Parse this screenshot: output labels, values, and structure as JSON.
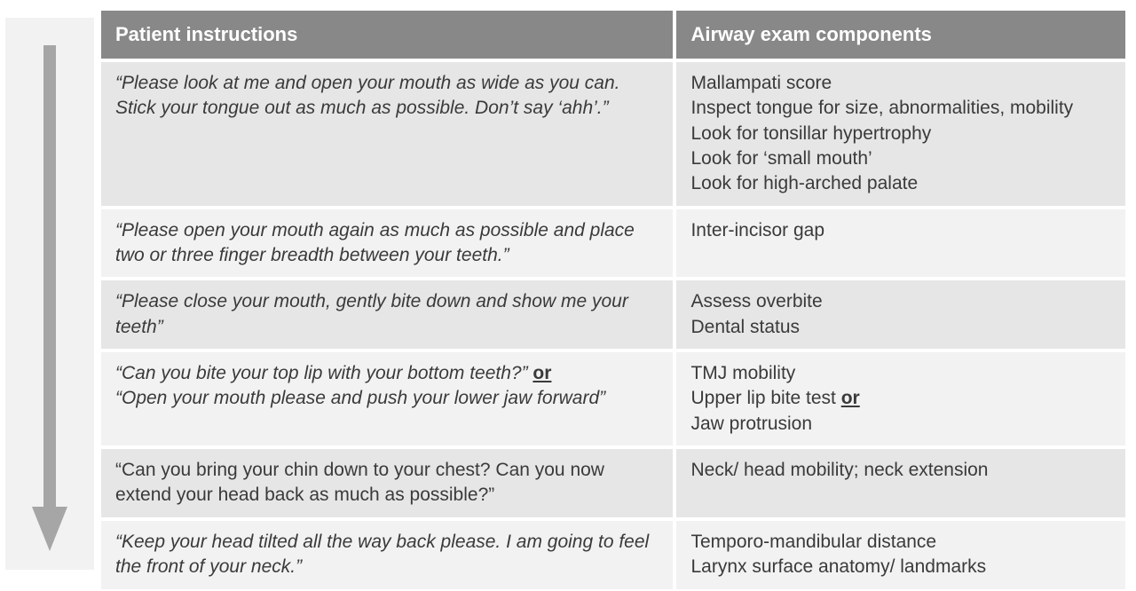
{
  "table": {
    "header": {
      "col1": "Patient instructions",
      "col2": "Airway  exam components"
    },
    "rows": [
      {
        "instruction_italic": true,
        "instruction": "“Please look at me and open your mouth as wide as you can. Stick your tongue out as much as possible. Don’t say ‘ahh’.”",
        "components": "Mallampati score\nInspect tongue for size, abnormalities, mobility\nLook for tonsillar hypertrophy\nLook for ‘small mouth’\nLook for high-arched palate",
        "shade": "a"
      },
      {
        "instruction_italic": true,
        "instruction": "“Please open your mouth again as much as possible and place two or three finger breadth between your teeth.”",
        "components": "Inter-incisor gap",
        "shade": "b"
      },
      {
        "instruction_italic": true,
        "instruction": "“Please close your mouth, gently bite down and show me your teeth”",
        "components": "Assess overbite\nDental status",
        "shade": "a"
      },
      {
        "instruction_italic": true,
        "instruction_html": "<span class=\"ital\">“Can you bite your top lip with your bottom teeth?” </span><span class=\"underline\">or</span><br><span class=\"ital\">“Open your mouth please and push your lower jaw forward”</span>",
        "components_html": "TMJ mobility<br>Upper lip bite test <span class=\"underline2\">or</span><br>Jaw protrusion",
        "shade": "b"
      },
      {
        "instruction_italic": false,
        "instruction": "“Can you bring your chin down to your chest? Can you now extend your head back as much as possible?”",
        "components": "Neck/ head mobility; neck extension",
        "shade": "a"
      },
      {
        "instruction_italic": true,
        "instruction": "“Keep your head tilted all the way back please. I am going to feel the front of your neck.”",
        "components": "Temporo-mandibular distance\nLarynx surface anatomy/ landmarks",
        "shade": "b"
      }
    ]
  },
  "style": {
    "header_bg": "#888888",
    "header_fg": "#ffffff",
    "shade_a": "#e6e6e6",
    "shade_b": "#f2f2f2",
    "arrow_color": "#a6a6a6",
    "border_color": "#ffffff",
    "text_color": "#3a3a3a",
    "font_size_header": 22,
    "font_size_body": 21,
    "col1_width_pct": 56,
    "col2_width_pct": 44
  }
}
